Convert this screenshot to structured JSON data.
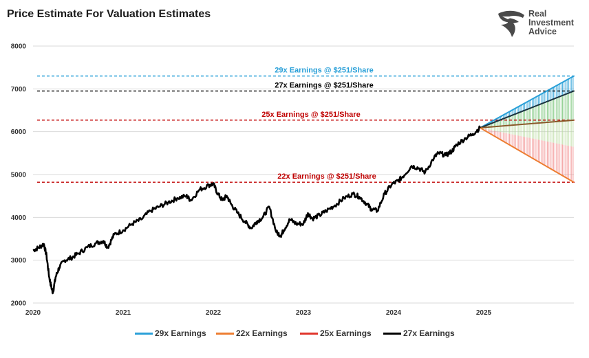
{
  "title": "Price Estimate For Valuation Estimates",
  "logo": {
    "lines": [
      "Real",
      "Investment",
      "Advice"
    ],
    "icon": "eagle-head-icon",
    "color": "#4a4a4a"
  },
  "colors": {
    "c29": "#2aa0d8",
    "c22": "#ed7d31",
    "c25": "#c00000",
    "c27": "#000000"
  },
  "legend": [
    {
      "label": "29x Earnings",
      "color": "#2aa0d8"
    },
    {
      "label": "22x Earnings",
      "color": "#ed7d31"
    },
    {
      "label": "25x Earnings",
      "color": "#e0352b"
    },
    {
      "label": "27x Earnings",
      "color": "#000000"
    }
  ],
  "chart_data": {
    "type": "line",
    "title": "Price Estimate For Valuation Estimates",
    "xlim": [
      2020.0,
      2026.0
    ],
    "ylim": [
      2000,
      8000
    ],
    "x_ticks": [
      "2020",
      "2021",
      "2022",
      "2023",
      "2024",
      "2025"
    ],
    "y_ticks": [
      2000,
      3000,
      4000,
      5000,
      6000,
      7000,
      8000
    ],
    "grid": "horizontal",
    "legend_position": "bottom",
    "reference_lines": [
      {
        "label": "29x Earnings @ $251/Share",
        "value": 7300,
        "color": "#2aa0d8"
      },
      {
        "label": "27x Earnings @ $251/Share",
        "value": 6950,
        "color": "#000000"
      },
      {
        "label": "25x Earnings @ $251/Share",
        "value": 6270,
        "color": "#c00000"
      },
      {
        "label": "22x Earnings @ $251/Share",
        "value": 4820,
        "color": "#c00000"
      }
    ],
    "projection": {
      "start": [
        2024.96,
        6090
      ],
      "end_x": 2026.0,
      "targets": [
        {
          "name": "29x Earnings",
          "value": 7300
        },
        {
          "name": "27x Earnings",
          "value": 6950
        },
        {
          "name": "25x Earnings",
          "value": 6270
        },
        {
          "name": "22x Earnings",
          "value": 4820
        }
      ]
    },
    "series": [
      {
        "x": [
          2020.0,
          2020.06,
          2020.12,
          2020.15,
          2020.18,
          2020.2,
          2020.22,
          2020.25,
          2020.29,
          2020.35,
          2020.42,
          2020.5,
          2020.6,
          2020.7,
          2020.78,
          2020.83,
          2020.9,
          2021.0,
          2021.1,
          2021.2,
          2021.3,
          2021.4,
          2021.5,
          2021.6,
          2021.7,
          2021.75,
          2021.85,
          2021.95,
          2022.0,
          2022.05,
          2022.1,
          2022.15,
          2022.2,
          2022.27,
          2022.35,
          2022.42,
          2022.48,
          2022.55,
          2022.62,
          2022.7,
          2022.75,
          2022.78,
          2022.85,
          2022.92,
          2023.0,
          2023.05,
          2023.1,
          2023.18,
          2023.25,
          2023.35,
          2023.45,
          2023.55,
          2023.62,
          2023.7,
          2023.75,
          2023.82,
          2023.9,
          2023.98,
          2024.05,
          2024.1,
          2024.2,
          2024.28,
          2024.35,
          2024.45,
          2024.5,
          2024.58,
          2024.65,
          2024.7,
          2024.8,
          2024.88,
          2024.96
        ],
        "values": [
          3230,
          3290,
          3380,
          3100,
          2600,
          2400,
          2240,
          2600,
          2830,
          3000,
          3050,
          3150,
          3300,
          3400,
          3450,
          3300,
          3600,
          3700,
          3850,
          3950,
          4150,
          4250,
          4350,
          4450,
          4500,
          4400,
          4650,
          4750,
          4780,
          4550,
          4400,
          4500,
          4300,
          4100,
          3900,
          3750,
          3900,
          4000,
          4250,
          3650,
          3580,
          3700,
          3950,
          3850,
          3850,
          4100,
          3970,
          4050,
          4150,
          4280,
          4450,
          4550,
          4480,
          4320,
          4200,
          4150,
          4550,
          4770,
          4850,
          4950,
          5200,
          5150,
          5050,
          5400,
          5500,
          5450,
          5550,
          5700,
          5850,
          5950,
          6090
        ]
      }
    ]
  }
}
